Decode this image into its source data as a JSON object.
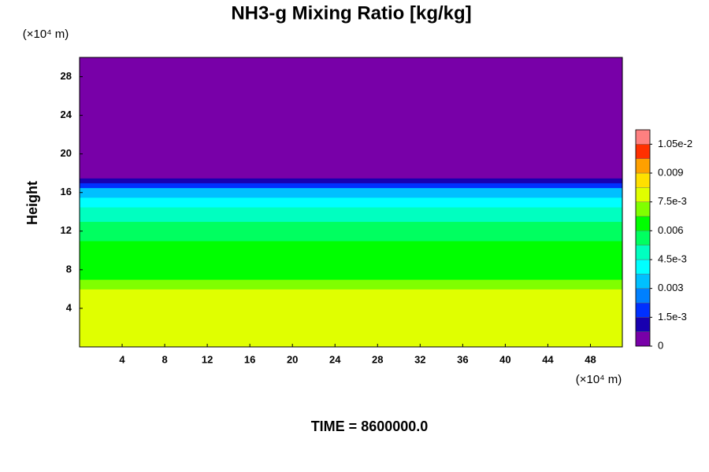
{
  "chart_data": {
    "type": "contour",
    "title": "NH3-g Mixing Ratio [kg/kg]",
    "ylabel": "Height",
    "y_unit": "(×10⁴ m)",
    "x_unit": "(×10⁴ m)",
    "subtitle": "TIME = 8600000.0",
    "xlim": [
      0,
      51
    ],
    "xticks": [
      4,
      8,
      12,
      16,
      20,
      24,
      28,
      32,
      36,
      40,
      44,
      48
    ],
    "ylim": [
      0,
      30
    ],
    "yticks": [
      4,
      8,
      12,
      16,
      20,
      24,
      28
    ],
    "y_bins": [
      0,
      5,
      6,
      7,
      8,
      9,
      10,
      11,
      12,
      13,
      14,
      14.5,
      15.5,
      16.5,
      17,
      17.5,
      30
    ],
    "values": [
      0.0079,
      0.0075,
      0.0071,
      0.0067,
      0.0064,
      0.0062,
      0.006,
      0.0057,
      0.0053,
      0.005,
      0.0046,
      0.004,
      0.003,
      0.002,
      0.001,
      0.0002
    ],
    "colorbar": {
      "lim": [
        0,
        0.01125
      ],
      "colors": [
        "#7800a8",
        "#1800b0",
        "#0030ff",
        "#0080ff",
        "#00c0ff",
        "#00ffff",
        "#00ffc0",
        "#00ff60",
        "#00ff00",
        "#80ff00",
        "#e0ff00",
        "#ffe000",
        "#ffa000",
        "#ff3000",
        "#ff8080"
      ],
      "ticks": [
        0,
        {
          "value": 0.0015,
          "label": "1.5e-3"
        },
        0.003,
        {
          "value": 0.0045,
          "label": "4.5e-3"
        },
        0.006,
        {
          "value": 0.0075,
          "label": "7.5e-3"
        },
        0.009,
        {
          "value": 0.0105,
          "label": "1.05e-2"
        }
      ]
    }
  }
}
